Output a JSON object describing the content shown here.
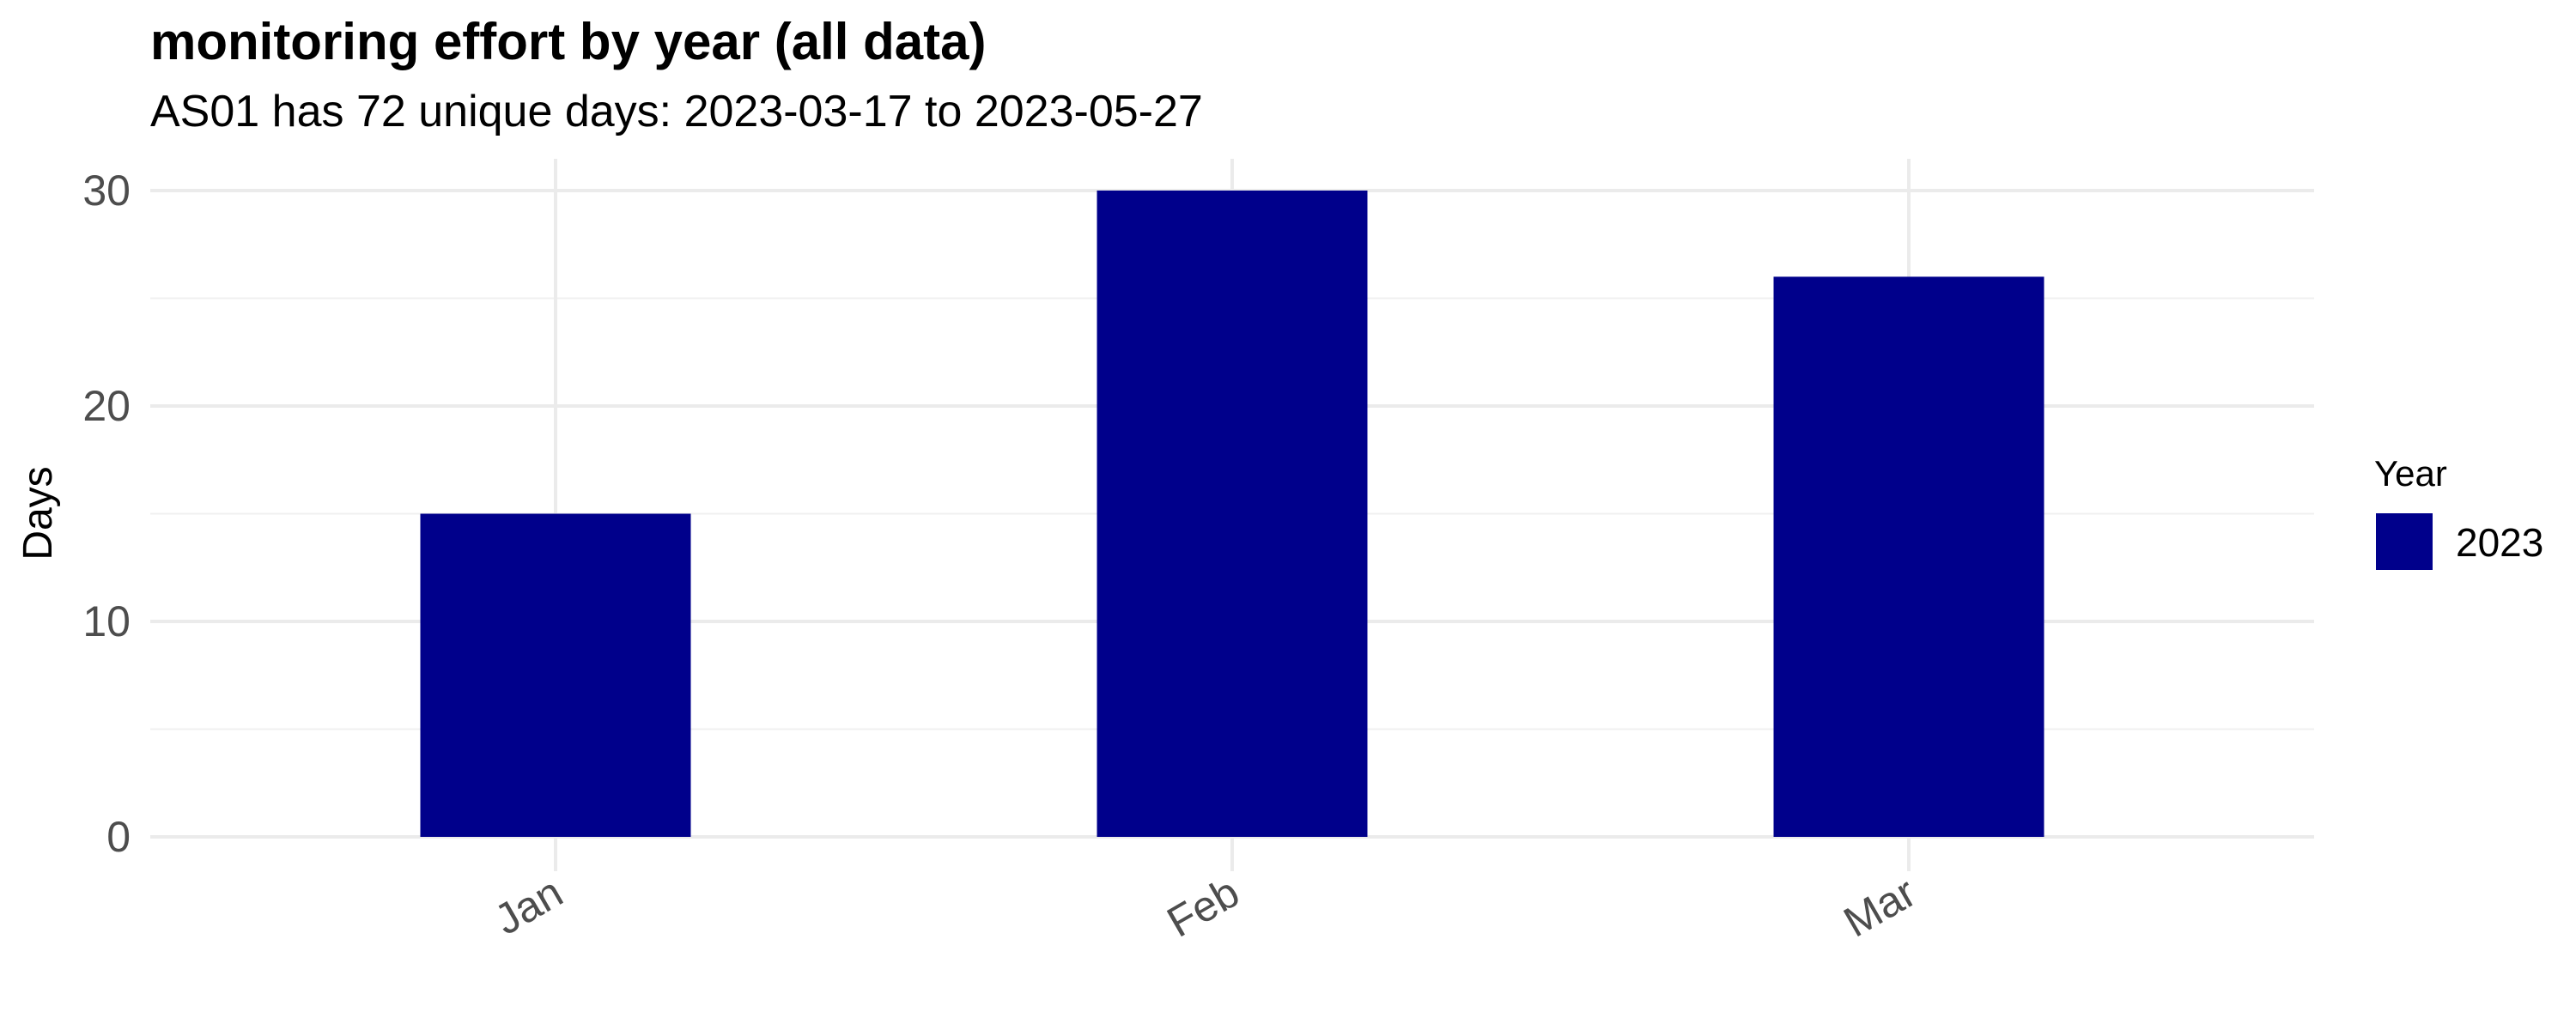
{
  "chart_data": {
    "type": "bar",
    "title": "monitoring effort by year (all data)",
    "subtitle": "AS01 has 72 unique days: 2023-03-17 to 2023-05-27",
    "xlabel": "",
    "ylabel": "Days",
    "categories": [
      "Jan",
      "Feb",
      "Mar"
    ],
    "series": [
      {
        "name": "2023",
        "values": [
          15,
          30,
          26
        ],
        "color": "#00008B"
      }
    ],
    "ylim": [
      0,
      30
    ],
    "yticks": [
      0,
      10,
      20,
      30
    ],
    "grid": true,
    "legend": {
      "title": "Year",
      "position": "right"
    },
    "x_tick_rotation": 30
  }
}
